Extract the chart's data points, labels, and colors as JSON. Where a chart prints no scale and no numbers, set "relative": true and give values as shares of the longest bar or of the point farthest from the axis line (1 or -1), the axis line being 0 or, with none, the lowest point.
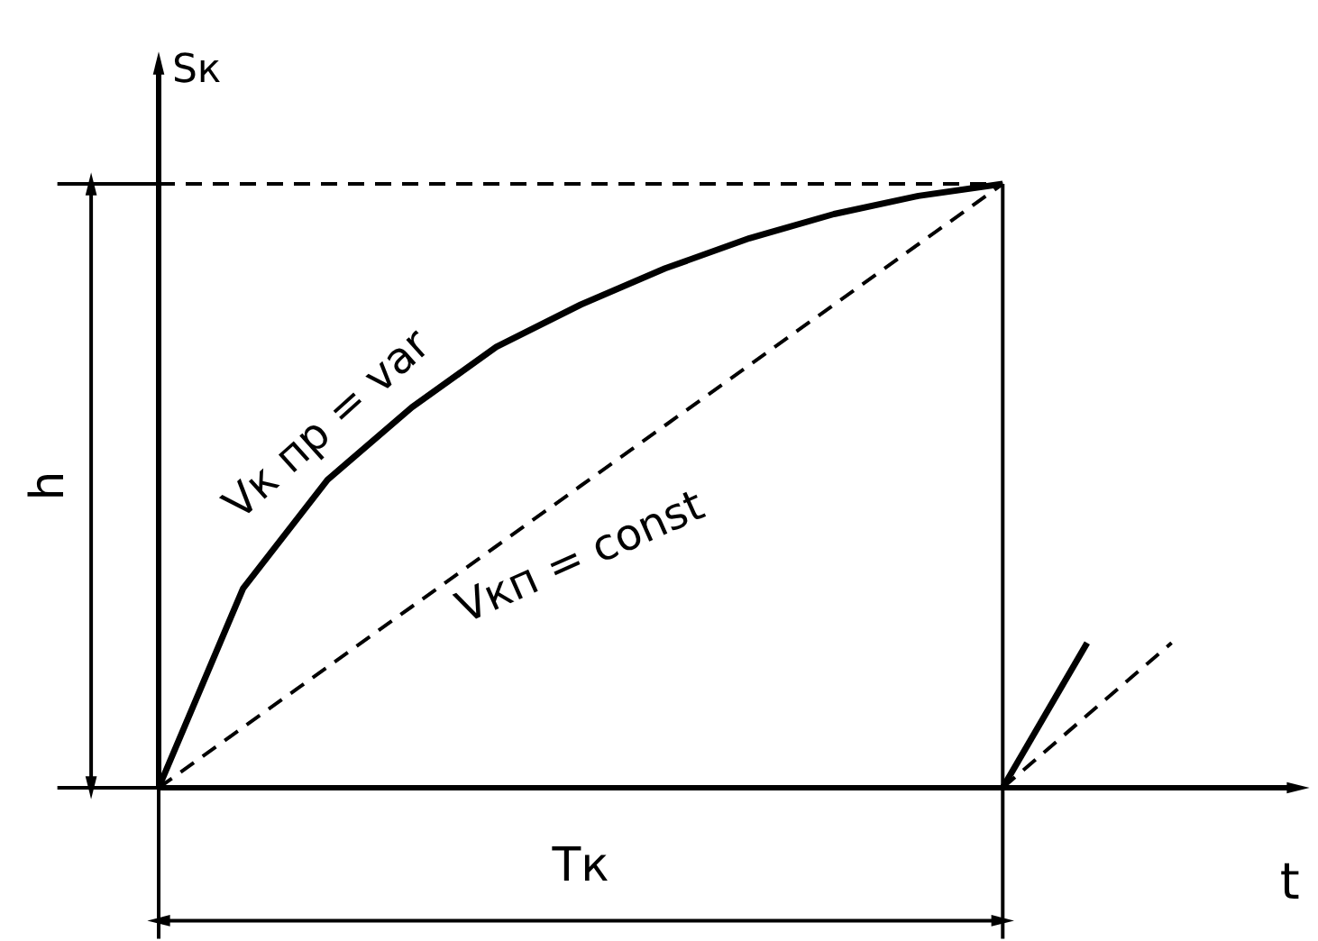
{
  "chart_data": {
    "type": "line",
    "relative": true,
    "xlabel": "t",
    "ylabel": "Sк",
    "tick_labels": false,
    "grid": false,
    "marker": "none",
    "categories": [
      null,
      null,
      null,
      null,
      null,
      null,
      null,
      null,
      null,
      null,
      null,
      null,
      null,
      null
    ],
    "series": [
      {
        "color": "#000000",
        "line_style": "solid",
        "values": [
          0,
          0.33,
          0.51,
          0.63,
          0.73,
          0.8,
          0.86,
          0.91,
          0.95,
          0.98,
          1,
          null,
          null,
          null
        ]
      },
      {
        "color": "#000000",
        "line_style": "dashed",
        "values": [
          0,
          0.1,
          0.2,
          0.3,
          0.4,
          0.5,
          0.6,
          0.7,
          0.8,
          0.9,
          1,
          null,
          null,
          null
        ]
      },
      {
        "color": "#000000",
        "line_style": "solid",
        "values": [
          null,
          null,
          null,
          null,
          null,
          null,
          null,
          null,
          null,
          null,
          0,
          0.24,
          null,
          null
        ]
      },
      {
        "color": "#000000",
        "line_style": "dashed",
        "values": [
          null,
          null,
          null,
          null,
          null,
          null,
          null,
          null,
          null,
          null,
          0,
          0.12,
          0.24,
          null
        ]
      }
    ],
    "ref_lines": [
      {
        "axis": "y",
        "value": 1,
        "line_style": "dashed"
      }
    ],
    "annotations": [
      "Vк пр = var",
      "Vкп = const",
      "h",
      "Tк"
    ]
  }
}
